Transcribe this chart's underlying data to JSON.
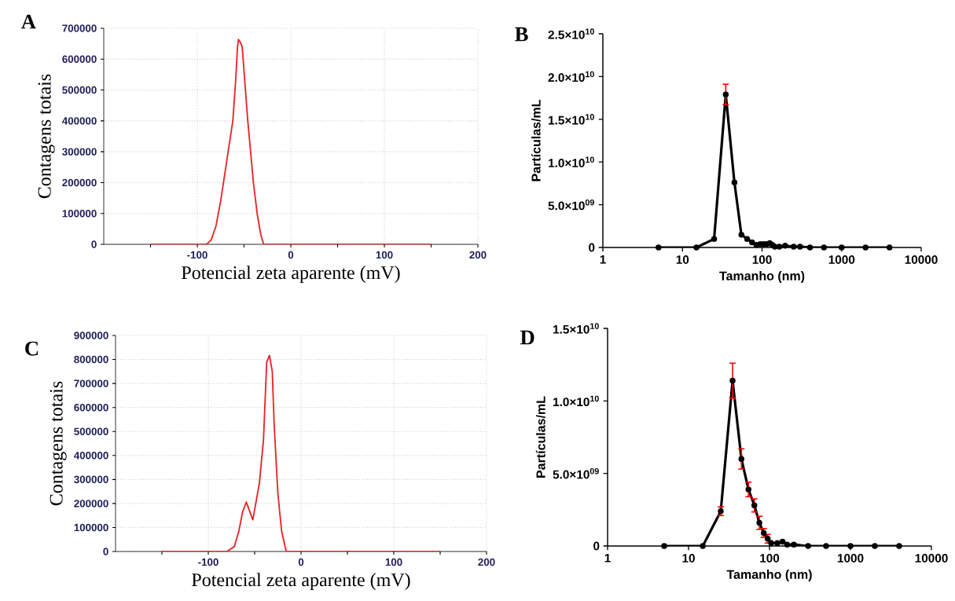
{
  "chart_data": [
    {
      "type": "line",
      "title": "A",
      "xlabel": "Potencial zeta aparente (mV)",
      "ylabel": "Contagens totais",
      "color": "#e8262a",
      "marker": "none",
      "line_style": "solid",
      "grid": true,
      "x": [
        -150,
        -90,
        -85,
        -80,
        -75,
        -72,
        -67,
        -62,
        -59,
        -57,
        -56,
        -54,
        -52,
        -50,
        -46,
        -43,
        -40,
        -36,
        -32,
        -29,
        150
      ],
      "values": [
        0,
        0,
        15000,
        60000,
        140000,
        200000,
        300000,
        400000,
        530000,
        640000,
        664000,
        655000,
        640000,
        560000,
        400000,
        300000,
        200000,
        100000,
        30000,
        0,
        0
      ],
      "xlim": [
        -200,
        200
      ],
      "xticks": [
        {
          "value": -150,
          "label": null
        },
        -100,
        {
          "value": -50,
          "label": null
        },
        0,
        {
          "value": 50,
          "label": null
        },
        100,
        {
          "value": 150,
          "label": null
        },
        200
      ],
      "ylim": [
        0,
        700000
      ],
      "yticks": [
        0,
        100000,
        200000,
        300000,
        400000,
        500000,
        600000,
        700000
      ]
    },
    {
      "type": "line",
      "title": "B",
      "xlabel": "Tamanho (nm)",
      "ylabel": "Partículas/mL",
      "color": "#000000",
      "marker": "circle",
      "line_style": "solid",
      "log": "x",
      "x": [
        5,
        15,
        25,
        35,
        45,
        55,
        65,
        75,
        85,
        95,
        105,
        115,
        125,
        135,
        145,
        165,
        195,
        250,
        300,
        400,
        600,
        1000,
        2000,
        4000
      ],
      "values": [
        0,
        0,
        1000000000.0,
        17900000000.0,
        7600000000.0,
        1500000000.0,
        1000000000.0,
        600000000.0,
        300000000.0,
        400000000.0,
        400000000.0,
        400000000.0,
        500000000.0,
        300000000.0,
        100000000.0,
        100000000.0,
        200000000.0,
        100000000.0,
        100000000.0,
        0,
        0,
        0,
        0,
        0
      ],
      "errors": [
        null,
        null,
        null,
        1200000000.0,
        null,
        null,
        null,
        null,
        null,
        null,
        null,
        null,
        null,
        null,
        null,
        null,
        null,
        null,
        null,
        null,
        null,
        null,
        null,
        null
      ],
      "xlim": [
        1,
        10000
      ],
      "xticks": [
        1,
        10,
        100,
        1000,
        10000
      ],
      "ylim": [
        0,
        25000000000.0
      ],
      "yticks": [
        0,
        {
          "value": 5000000000.0,
          "label": "5.0×10$^{09}$"
        },
        {
          "value": 10000000000.0,
          "label": "1.0×10$^{10}$"
        },
        {
          "value": 15000000000.0,
          "label": "1.5×10$^{10}$"
        },
        {
          "value": 20000000000.0,
          "label": "2.0×10$^{10}$"
        },
        {
          "value": 25000000000.0,
          "label": "2.5×10$^{10}$"
        }
      ]
    },
    {
      "type": "line",
      "title": "C",
      "xlabel": "Potencial zeta aparente (mV)",
      "ylabel": "Contagens totais",
      "color": "#e8262a",
      "marker": "none",
      "line_style": "solid",
      "grid": true,
      "x": [
        -150,
        -80,
        -72,
        -67,
        -63,
        -59,
        -52,
        -45,
        -40.5,
        -37,
        -34,
        -31,
        -29,
        -25,
        -21,
        -16,
        150
      ],
      "values": [
        0,
        0,
        20000,
        86000,
        165000,
        206000,
        132000,
        282000,
        465000,
        790000,
        817000,
        750000,
        530000,
        243000,
        86000,
        0,
        0
      ],
      "xlim": [
        -200,
        200
      ],
      "xticks": [
        {
          "value": -150,
          "label": null
        },
        -100,
        {
          "value": -50,
          "label": null
        },
        0,
        {
          "value": 50,
          "label": null
        },
        100,
        {
          "value": 150,
          "label": null
        },
        200
      ],
      "ylim": [
        0,
        900000
      ],
      "yticks": [
        0,
        100000,
        200000,
        300000,
        400000,
        500000,
        600000,
        700000,
        800000,
        900000
      ]
    },
    {
      "type": "line",
      "title": "D",
      "xlabel": "Tamanho (nm)",
      "ylabel": "Partículas/mL",
      "color": "#000000",
      "marker": "circle",
      "line_style": "solid",
      "log": "x",
      "x": [
        5,
        15,
        25,
        35,
        45,
        55,
        65,
        75,
        85,
        95,
        105,
        125,
        145,
        165,
        200,
        300,
        500,
        1000,
        2000,
        4000
      ],
      "values": [
        0,
        0,
        2400000000.0,
        11400000000.0,
        6000000000.0,
        3900000000.0,
        2800000000.0,
        1600000000.0,
        900000000.0,
        500000000.0,
        200000000.0,
        200000000.0,
        300000000.0,
        100000000.0,
        100000000.0,
        0,
        0,
        0,
        0,
        0
      ],
      "errors": [
        null,
        null,
        300000000.0,
        1200000000.0,
        700000000.0,
        500000000.0,
        450000000.0,
        450000000.0,
        300000000.0,
        300000000.0,
        null,
        null,
        null,
        null,
        null,
        null,
        null,
        null,
        null,
        null
      ],
      "xlim": [
        1,
        10000
      ],
      "xticks": [
        1,
        10,
        100,
        1000,
        10000
      ],
      "ylim": [
        0,
        15000000000.0
      ],
      "yticks": [
        0,
        {
          "value": 5000000000.0,
          "label": "5.0×10$^{09}$"
        },
        {
          "value": 10000000000.0,
          "label": "1.0×10$^{10}$"
        },
        {
          "value": 15000000000.0,
          "label": "1.5×10$^{10}$"
        }
      ]
    }
  ]
}
